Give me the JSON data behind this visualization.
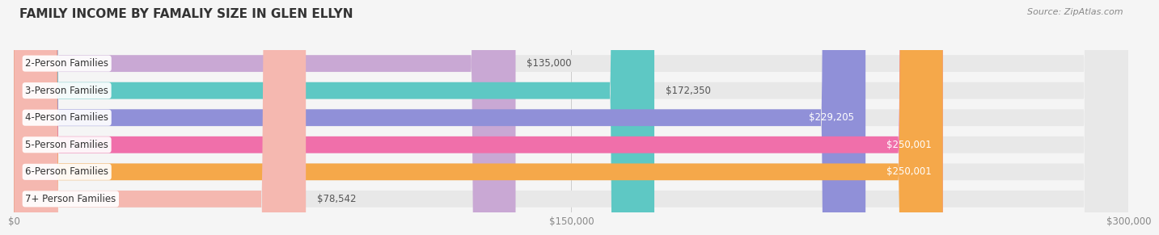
{
  "title": "FAMILY INCOME BY FAMALIY SIZE IN GLEN ELLYN",
  "source": "Source: ZipAtlas.com",
  "categories": [
    "2-Person Families",
    "3-Person Families",
    "4-Person Families",
    "5-Person Families",
    "6-Person Families",
    "7+ Person Families"
  ],
  "values": [
    135000,
    172350,
    229205,
    250001,
    250001,
    78542
  ],
  "bar_colors": [
    "#c9a8d4",
    "#5ec8c4",
    "#9090d8",
    "#f06faa",
    "#f5a84a",
    "#f5b8b0"
  ],
  "value_labels": [
    "$135,000",
    "$172,350",
    "$229,205",
    "$250,001",
    "$250,001",
    "$78,542"
  ],
  "label_inside": [
    false,
    false,
    true,
    true,
    true,
    false
  ],
  "label_colors_inside": [
    "#555555",
    "#555555",
    "#ffffff",
    "#ffffff",
    "#ffffff",
    "#555555"
  ],
  "x_max": 300000,
  "x_ticks": [
    0,
    150000,
    300000
  ],
  "x_tick_labels": [
    "$0",
    "$150,000",
    "$300,000"
  ],
  "background_color": "#f5f5f5",
  "bar_bg_color": "#e8e8e8",
  "title_fontsize": 11,
  "label_fontsize": 8.5,
  "source_fontsize": 8
}
